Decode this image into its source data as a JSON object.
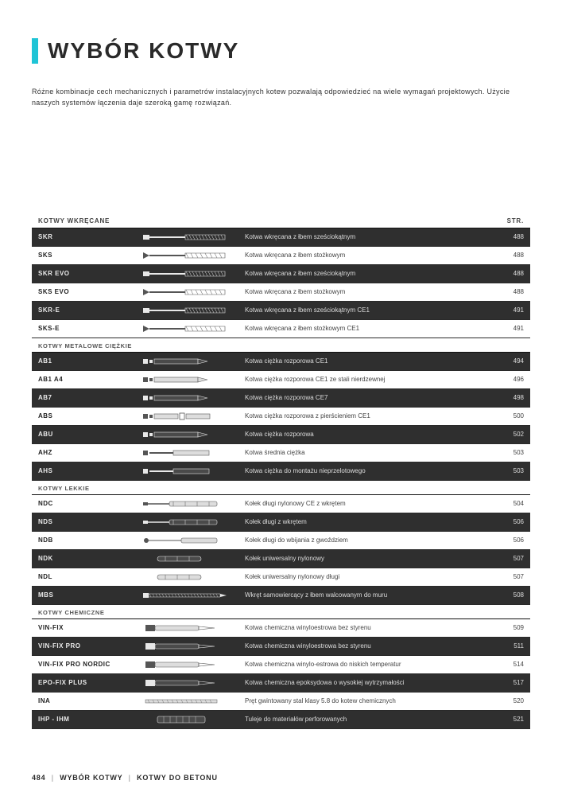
{
  "colors": {
    "accent": "#1fc4d6",
    "text": "#2a2a2a",
    "row_dark_bg": "#2f2f2f",
    "row_dark_text": "#eaeaea",
    "border": "#111111"
  },
  "title": "WYBÓR KOTWY",
  "intro": "Różne kombinacje cech mechanicznych i parametrów instalacyjnych kotew pozwalają odpowiedzieć na wiele wymagań projektowych. Użycie naszych systemów łączenia daje szeroką gamę rozwiązań.",
  "header": {
    "left": "KOTWY WKRĘCANE",
    "right": "STR."
  },
  "sections": [
    {
      "heading": null,
      "rows": [
        {
          "code": "SKR",
          "desc": "Kotwa wkręcana z łbem sześciokątnym",
          "page": "488",
          "icon": "screw-hex"
        },
        {
          "code": "SKS",
          "desc": "Kotwa wkręcana z łbem stożkowym",
          "page": "488",
          "icon": "screw-cone"
        },
        {
          "code": "SKR EVO",
          "desc": "Kotwa wkręcana z łbem sześciokątnym",
          "page": "488",
          "icon": "screw-hex"
        },
        {
          "code": "SKS EVO",
          "desc": "Kotwa wkręcana z łbem stożkowym",
          "page": "488",
          "icon": "screw-cone"
        },
        {
          "code": "SKR-E",
          "desc": "Kotwa wkręcana z łbem sześciokątnym CE1",
          "page": "491",
          "icon": "screw-hex"
        },
        {
          "code": "SKS-E",
          "desc": "Kotwa wkręcana z łbem stożkowym CE1",
          "page": "491",
          "icon": "screw-cone"
        }
      ]
    },
    {
      "heading": "KOTWY METALOWE CIĘŻKIE",
      "rows": [
        {
          "code": "AB1",
          "desc": "Kotwa ciężka rozporowa CE1",
          "page": "494",
          "icon": "anchor-exp"
        },
        {
          "code": "AB1 A4",
          "desc": "Kotwa ciężka rozporowa CE1 ze stali nierdzewnej",
          "page": "496",
          "icon": "anchor-exp"
        },
        {
          "code": "AB7",
          "desc": "Kotwa ciężka rozporowa CE7",
          "page": "498",
          "icon": "anchor-exp"
        },
        {
          "code": "ABS",
          "desc": "Kotwa ciężka rozporowa z pierścieniem CE1",
          "page": "500",
          "icon": "anchor-ring"
        },
        {
          "code": "ABU",
          "desc": "Kotwa ciężka rozporowa",
          "page": "502",
          "icon": "anchor-exp"
        },
        {
          "code": "AHZ",
          "desc": "Kotwa średnia ciężka",
          "page": "503",
          "icon": "anchor-mid"
        },
        {
          "code": "AHS",
          "desc": "Kotwa ciężka do montażu nieprzelotowego",
          "page": "503",
          "icon": "anchor-mid"
        }
      ]
    },
    {
      "heading": "KOTWY LEKKIE",
      "rows": [
        {
          "code": "NDC",
          "desc": "Kołek długi nylonowy CE z wkrętem",
          "page": "504",
          "icon": "plug-long"
        },
        {
          "code": "NDS",
          "desc": "Kołek długi z wkrętem",
          "page": "506",
          "icon": "plug-long"
        },
        {
          "code": "NDB",
          "desc": "Kołek długi do wbijania z gwoździem",
          "page": "506",
          "icon": "plug-nail"
        },
        {
          "code": "NDK",
          "desc": "Kołek uniwersalny nylonowy",
          "page": "507",
          "icon": "plug-uni"
        },
        {
          "code": "NDL",
          "desc": "Kołek uniwersalny nylonowy długi",
          "page": "507",
          "icon": "plug-uni"
        },
        {
          "code": "MBS",
          "desc": "Wkręt samowiercący z łbem walcowanym do muru",
          "page": "508",
          "icon": "screw-mason"
        }
      ]
    },
    {
      "heading": "KOTWY CHEMICZNE",
      "rows": [
        {
          "code": "VIN-FIX",
          "desc": "Kotwa chemiczna winyloestrowa bez styrenu",
          "page": "509",
          "icon": "cartridge"
        },
        {
          "code": "VIN-FIX PRO",
          "desc": "Kotwa chemiczna winyloestrowa bez styrenu",
          "page": "511",
          "icon": "cartridge"
        },
        {
          "code": "VIN-FIX PRO NORDIC",
          "desc": "Kotwa chemiczna winylo-estrowa do niskich temperatur",
          "page": "514",
          "icon": "cartridge"
        },
        {
          "code": "EPO-FIX PLUS",
          "desc": "Kotwa chemiczna epoksydowa o wysokiej wytrzymałości",
          "page": "517",
          "icon": "cartridge"
        },
        {
          "code": "INA",
          "desc": "Pręt gwintowany stal klasy 5.8 do kotew chemicznych",
          "page": "520",
          "icon": "rod"
        },
        {
          "code": "IHP - IHM",
          "desc": "Tuleje do materiałów perforowanych",
          "page": "521",
          "icon": "sleeve"
        }
      ]
    }
  ],
  "footer": {
    "page": "484",
    "crumb1": "WYBÓR KOTWY",
    "crumb2": "KOTWY DO BETONU"
  }
}
